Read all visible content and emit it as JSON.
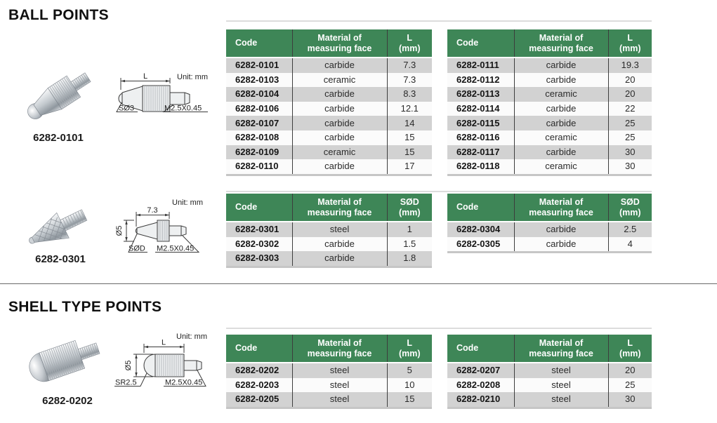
{
  "sections": [
    {
      "title": "BALL POINTS",
      "figures": [
        {
          "caption": "6282-0101",
          "drawing": {
            "unit": "Unit: mm",
            "dim_top": "L",
            "label_left": "SØ3",
            "label_right": "M2.5X0.45"
          }
        },
        {
          "caption": "6282-0301",
          "drawing": {
            "unit": "Unit: mm",
            "dim_top": "7.3",
            "dim_left": "Ø5",
            "label_left": "SØD",
            "label_right": "M2.5X0.45"
          }
        }
      ]
    },
    {
      "title": "SHELL TYPE POINTS",
      "figures": [
        {
          "caption": "6282-0202",
          "drawing": {
            "unit": "Unit: mm",
            "dim_top": "L",
            "dim_left": "Ø5",
            "label_left": "SR2.5",
            "label_right": "M2.5X0.45"
          }
        }
      ]
    }
  ],
  "tables": [
    {
      "name": "ball-points-length-table-1",
      "headers": [
        [
          "Code"
        ],
        [
          "Material of",
          "measuring face"
        ],
        [
          "L",
          "(mm)"
        ]
      ],
      "rows": [
        [
          "6282-0101",
          "carbide",
          "7.3"
        ],
        [
          "6282-0103",
          "ceramic",
          "7.3"
        ],
        [
          "6282-0104",
          "carbide",
          "8.3"
        ],
        [
          "6282-0106",
          "carbide",
          "12.1"
        ],
        [
          "6282-0107",
          "carbide",
          "14"
        ],
        [
          "6282-0108",
          "carbide",
          "15"
        ],
        [
          "6282-0109",
          "ceramic",
          "15"
        ],
        [
          "6282-0110",
          "carbide",
          "17"
        ]
      ]
    },
    {
      "name": "ball-points-length-table-2",
      "headers": [
        [
          "Code"
        ],
        [
          "Material of",
          "measuring face"
        ],
        [
          "L",
          "(mm)"
        ]
      ],
      "rows": [
        [
          "6282-0111",
          "carbide",
          "19.3"
        ],
        [
          "6282-0112",
          "carbide",
          "20"
        ],
        [
          "6282-0113",
          "ceramic",
          "20"
        ],
        [
          "6282-0114",
          "carbide",
          "22"
        ],
        [
          "6282-0115",
          "carbide",
          "25"
        ],
        [
          "6282-0116",
          "ceramic",
          "25"
        ],
        [
          "6282-0117",
          "carbide",
          "30"
        ],
        [
          "6282-0118",
          "ceramic",
          "30"
        ]
      ]
    },
    {
      "name": "ball-points-diameter-table-1",
      "headers": [
        [
          "Code"
        ],
        [
          "Material of",
          "measuring face"
        ],
        [
          "SØD",
          "(mm)"
        ]
      ],
      "rows": [
        [
          "6282-0301",
          "steel",
          "1"
        ],
        [
          "6282-0302",
          "carbide",
          "1.5"
        ],
        [
          "6282-0303",
          "carbide",
          "1.8"
        ]
      ]
    },
    {
      "name": "ball-points-diameter-table-2",
      "headers": [
        [
          "Code"
        ],
        [
          "Material of",
          "measuring face"
        ],
        [
          "SØD",
          "(mm)"
        ]
      ],
      "rows": [
        [
          "6282-0304",
          "carbide",
          "2.5"
        ],
        [
          "6282-0305",
          "carbide",
          "4"
        ]
      ]
    },
    {
      "name": "shell-points-table-1",
      "headers": [
        [
          "Code"
        ],
        [
          "Material of",
          "measuring face"
        ],
        [
          "L",
          "(mm)"
        ]
      ],
      "rows": [
        [
          "6282-0202",
          "steel",
          "5"
        ],
        [
          "6282-0203",
          "steel",
          "10"
        ],
        [
          "6282-0205",
          "steel",
          "15"
        ]
      ]
    },
    {
      "name": "shell-points-table-2",
      "headers": [
        [
          "Code"
        ],
        [
          "Material of",
          "measuring face"
        ],
        [
          "L",
          "(mm)"
        ]
      ],
      "rows": [
        [
          "6282-0207",
          "steel",
          "20"
        ],
        [
          "6282-0208",
          "steel",
          "25"
        ],
        [
          "6282-0210",
          "steel",
          "30"
        ]
      ]
    }
  ],
  "colors": {
    "table_header_bg": "#3e8657",
    "table_header_text": "#ffffff",
    "row_alt_gray": "#d2d2d2",
    "row_alt_light": "#fbfbfb",
    "column_divider": "#3d3d3d",
    "section_divider": "#6a6a6a"
  }
}
